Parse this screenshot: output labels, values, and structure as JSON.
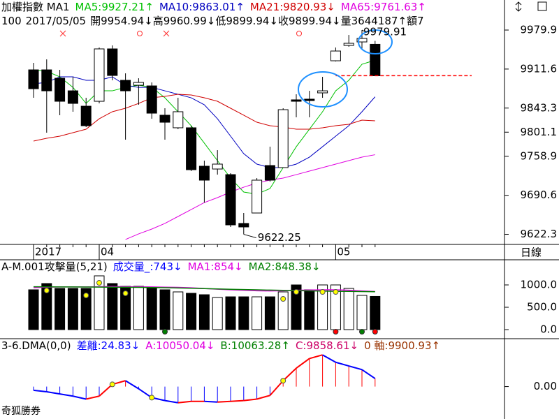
{
  "chart_data": [
    {
      "type": "candlestick",
      "title": "加權指數 MA1",
      "sep": ":",
      "period": "日線",
      "categories": [
        "2017",
        null,
        null,
        null,
        null,
        "04",
        null,
        null,
        null,
        null,
        null,
        null,
        null,
        null,
        null,
        null,
        null,
        null,
        null,
        null,
        null,
        null,
        null,
        "05",
        null,
        null,
        null
      ],
      "open": [
        9910.2,
        9910.2,
        9895.5,
        9873.5,
        9846.6,
        9855.2,
        9946.9,
        9891.9,
        9883.3,
        9882.1,
        9830.8,
        9808.8,
        9808.8,
        9741.5,
        9736.6,
        9726.8,
        9641.3,
        9659.6,
        9742.7,
        9739.1,
        9857.7,
        9858.9,
        9869.9,
        9926.1,
        9953.0,
        9959.1,
        9954.94
      ],
      "high": [
        9922.4,
        9928.6,
        9910.2,
        9898.0,
        9861.3,
        9949.3,
        9953.0,
        9904.1,
        9895.5,
        9888.2,
        9843.0,
        9861.3,
        9812.4,
        9751.3,
        9769.6,
        9729.3,
        9659.6,
        9720.7,
        9775.7,
        9843.0,
        9867.4,
        9873.5,
        9898.0,
        9949.3,
        9971.3,
        9979.91,
        9960.99
      ],
      "low": [
        9861.3,
        9800.2,
        9830.8,
        9836.9,
        9810.0,
        9851.5,
        9891.9,
        9788.0,
        9849.1,
        9824.6,
        9788.0,
        9806.3,
        9733.0,
        9677.9,
        9726.8,
        9635.2,
        9622.25,
        9659.6,
        9714.6,
        9739.1,
        9827.1,
        9827.1,
        9861.3,
        9924.9,
        9950.6,
        9946.9,
        9899.94
      ],
      "close": [
        9877.2,
        9873.5,
        9855.2,
        9851.5,
        9812.4,
        9946.9,
        9900.4,
        9873.5,
        9888.2,
        9834.4,
        9818.5,
        9836.9,
        9735.4,
        9717.1,
        9745.2,
        9638.8,
        9635.2,
        9717.1,
        9717.1,
        9840.5,
        9855.2,
        9856.4,
        9873.5,
        9943.2,
        9956.7,
        9965.2,
        9899.94
      ],
      "up_color": "#ffffff",
      "down_color": "#000000",
      "series": [
        {
          "name": "MA5",
          "color": "#00c000",
          "arrow": "↑",
          "values": [
            9910.2,
            9907.8,
            9898.0,
            9879.6,
            9851.5,
            9873.5,
            9873.5,
            9879.6,
            9883.3,
            9879.6,
            9861.3,
            9836.9,
            9812.4,
            9781.9,
            9751.3,
            9720.7,
            9696.3,
            9692.6,
            9702.4,
            9739.1,
            9775.7,
            9806.3,
            9836.9,
            9873.5,
            9891.9,
            9920.0,
            9927.21
          ]
        },
        {
          "name": "MA10",
          "color": "#0000c0",
          "arrow": "↑",
          "values": [
            9885.8,
            9888.2,
            9898.0,
            9898.0,
            9891.9,
            9891.9,
            9898.0,
            9883.3,
            9879.6,
            9879.6,
            9873.5,
            9867.4,
            9861.3,
            9849.1,
            9824.6,
            9794.1,
            9763.5,
            9745.2,
            9739.1,
            9739.1,
            9745.2,
            9757.4,
            9775.7,
            9794.1,
            9812.4,
            9836.9,
            9863.01
          ]
        },
        {
          "name": "MA21",
          "color": "#d00000",
          "arrow": "↓",
          "values": [
            9785.5,
            9790.4,
            9794.1,
            9800.2,
            9806.3,
            9824.6,
            9836.9,
            9843.0,
            9851.5,
            9861.3,
            9863.8,
            9867.4,
            9866.2,
            9861.3,
            9855.2,
            9843.0,
            9830.8,
            9818.5,
            9812.4,
            9810.0,
            9806.3,
            9806.3,
            9808.8,
            9812.4,
            9814.9,
            9822.2,
            9820.93
          ]
        },
        {
          "name": "MA65",
          "color": "#e000e0",
          "arrow": "↑",
          "values": [
            null,
            null,
            null,
            null,
            null,
            null,
            null,
            9613.2,
            9623.0,
            9631.5,
            9641.3,
            9653.5,
            9665.7,
            9677.9,
            9686.5,
            9696.3,
            9704.8,
            9712.2,
            9717.1,
            9720.7,
            9726.8,
            9733.0,
            9739.1,
            9745.2,
            9751.3,
            9757.4,
            9761.63
          ]
        }
      ],
      "quote": {
        "count": 100,
        "date": "2017/05/05",
        "items": [
          {
            "label": "開",
            "value": 9954.94,
            "arrow": "↓"
          },
          {
            "label": "高",
            "value": 9960.99,
            "arrow": "↓"
          },
          {
            "label": "低",
            "value": 9899.94,
            "arrow": "↓"
          },
          {
            "label": "收",
            "value": 9899.94,
            "arrow": "↓"
          },
          {
            "label": "量",
            "value": 3644187,
            "arrow": "↑"
          },
          {
            "label": "額7"
          }
        ]
      },
      "ylim": [
        9604.6,
        10032.5
      ],
      "yticks": [
        9979.9,
        9911.6,
        9843.3,
        9801.1,
        9758.9,
        9690.6,
        9622.3
      ]
    },
    {
      "type": "bar",
      "title": "A-M.001攻擊量(5,21)",
      "sep": ":",
      "series": [
        {
          "name": "成交量_",
          "color": "#0000ff",
          "arrow": "↓",
          "values": [
            891,
            1031,
            922,
            922,
            922,
            1203,
            1031,
            969,
            969,
            938,
            891,
            844,
            813,
            781,
            719,
            734,
            734,
            734,
            734,
            844,
            1000,
            891,
            1000,
            1000,
            922,
            766,
            743
          ]
        },
        {
          "name": "MA1",
          "color": "#e000e0",
          "arrow": "↓",
          "values": [
            940,
            950,
            955,
            955,
            955,
            960,
            965,
            960,
            958,
            955,
            950,
            945,
            935,
            920,
            905,
            890,
            880,
            870,
            865,
            870,
            880,
            885,
            890,
            890,
            880,
            865,
            854
          ]
        },
        {
          "name": "MA2",
          "color": "#008000",
          "arrow": "↓",
          "values": [
            960,
            958,
            956,
            955,
            953,
            952,
            950,
            948,
            945,
            942,
            938,
            932,
            925,
            918,
            910,
            903,
            897,
            890,
            884,
            878,
            873,
            868,
            863,
            858,
            855,
            851,
            848.38
          ]
        }
      ],
      "top_markers": {
        "color": "#ffff00",
        "indices": [
          1,
          4,
          5,
          7,
          19,
          20,
          22,
          23
        ]
      },
      "base_markers": [
        {
          "color": "#008000",
          "indices": [
            10,
            25
          ]
        },
        {
          "color": "#ff0000",
          "indices": [
            23,
            26
          ]
        }
      ],
      "ylim": [
        -203,
        1562.5
      ],
      "yticks": [
        {
          "value": 1000,
          "label": "1000.0"
        },
        {
          "value": 500,
          "label": "500.0"
        },
        {
          "value": 0,
          "label": "0.0"
        }
      ]
    },
    {
      "type": "stem",
      "title": "3-6.DMA(0,0)",
      "sep": ":",
      "up_color": "#ff0000",
      "down_color": "#0000ff",
      "series": [
        {
          "name": "差離",
          "color": "#0000ff",
          "arrow": "↓",
          "values": [
            -11.4,
            -15.9,
            -22.7,
            -29.5,
            -38.6,
            -29.5,
            6.8,
            18.2,
            -6.8,
            -34.1,
            -43.2,
            -50,
            -45.5,
            -45.5,
            -47.7,
            -45.5,
            -43.2,
            -38.6,
            -27.3,
            18.2,
            56.8,
            86.4,
            97.7,
            75,
            63.6,
            52.3,
            24.83
          ]
        }
      ],
      "indicators": [
        {
          "name": "A",
          "value": 10050.04,
          "arrow": "↓",
          "color": "#e000e0"
        },
        {
          "name": "B",
          "value": 10063.28,
          "arrow": "↑",
          "color": "#008000"
        },
        {
          "name": "C",
          "value": 9858.61,
          "arrow": "↓",
          "color": "#cc0066"
        },
        {
          "name": "0 軸",
          "value": 9900.93,
          "arrow": "↑",
          "color": "#993300"
        }
      ],
      "markers": {
        "color": "#ffff00",
        "indices": [
          6,
          9,
          19
        ]
      },
      "ylim": [
        -100,
        147.7
      ],
      "yticks": [
        {
          "value": 0,
          "label": "0.00"
        }
      ]
    }
  ],
  "footer": "奇狐勝券"
}
